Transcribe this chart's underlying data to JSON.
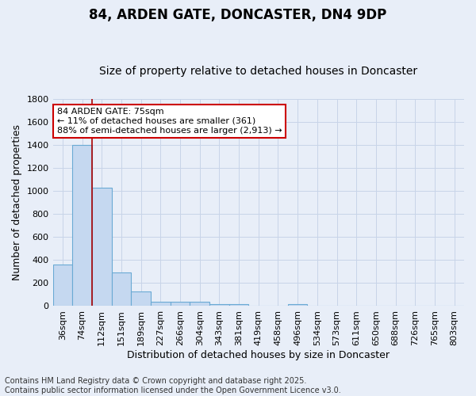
{
  "title": "84, ARDEN GATE, DONCASTER, DN4 9DP",
  "subtitle": "Size of property relative to detached houses in Doncaster",
  "xlabel": "Distribution of detached houses by size in Doncaster",
  "ylabel": "Number of detached properties",
  "footer_line1": "Contains HM Land Registry data © Crown copyright and database right 2025.",
  "footer_line2": "Contains public sector information licensed under the Open Government Licence v3.0.",
  "bin_labels": [
    "36sqm",
    "74sqm",
    "112sqm",
    "151sqm",
    "189sqm",
    "227sqm",
    "266sqm",
    "304sqm",
    "343sqm",
    "381sqm",
    "419sqm",
    "458sqm",
    "496sqm",
    "534sqm",
    "573sqm",
    "611sqm",
    "650sqm",
    "688sqm",
    "726sqm",
    "765sqm",
    "803sqm"
  ],
  "bar_values": [
    360,
    1400,
    1025,
    290,
    130,
    40,
    35,
    35,
    20,
    15,
    0,
    0,
    15,
    0,
    0,
    0,
    0,
    0,
    0,
    0,
    0
  ],
  "bar_color": "#c5d8f0",
  "bar_edge_color": "#6aaad4",
  "bar_edge_width": 0.8,
  "grid_color": "#c8d4e8",
  "background_color": "#e8eef8",
  "vline_x": 1.5,
  "vline_color": "#aa0000",
  "annotation_text": "84 ARDEN GATE: 75sqm\n← 11% of detached houses are smaller (361)\n88% of semi-detached houses are larger (2,913) →",
  "annotation_box_facecolor": "#ffffff",
  "annotation_box_edgecolor": "#cc0000",
  "annotation_text_color": "#000000",
  "ylim": [
    0,
    1800
  ],
  "yticks": [
    0,
    200,
    400,
    600,
    800,
    1000,
    1200,
    1400,
    1600,
    1800
  ],
  "title_fontsize": 12,
  "subtitle_fontsize": 10,
  "axis_label_fontsize": 9,
  "tick_fontsize": 8,
  "annotation_fontsize": 8,
  "footer_fontsize": 7
}
